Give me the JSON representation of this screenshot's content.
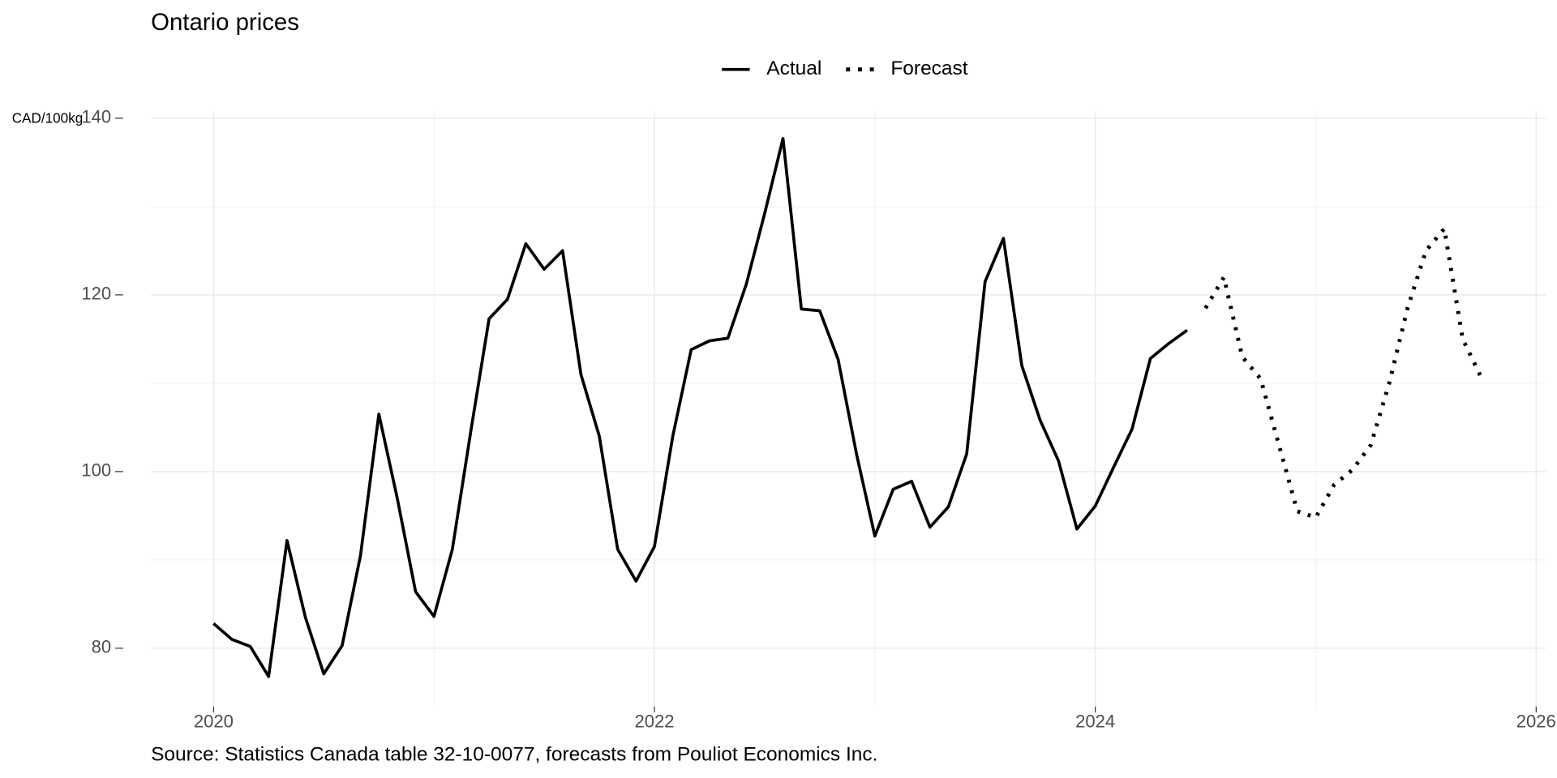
{
  "chart_data": {
    "type": "line",
    "title": "Ontario prices",
    "y_label": "CAD/100kg",
    "caption": "Source: Statistics Canada table 32-10-0077, forecasts from Pouliot Economics Inc.",
    "x": [
      "2020-01",
      "2020-02",
      "2020-03",
      "2020-04",
      "2020-05",
      "2020-06",
      "2020-07",
      "2020-08",
      "2020-09",
      "2020-10",
      "2020-11",
      "2020-12",
      "2021-01",
      "2021-02",
      "2021-03",
      "2021-04",
      "2021-05",
      "2021-06",
      "2021-07",
      "2021-08",
      "2021-09",
      "2021-10",
      "2021-11",
      "2021-12",
      "2022-01",
      "2022-02",
      "2022-03",
      "2022-04",
      "2022-05",
      "2022-06",
      "2022-07",
      "2022-08",
      "2022-09",
      "2022-10",
      "2022-11",
      "2022-12",
      "2023-01",
      "2023-02",
      "2023-03",
      "2023-04",
      "2023-05",
      "2023-06",
      "2023-07",
      "2023-08",
      "2023-09",
      "2023-10",
      "2023-11",
      "2023-12",
      "2024-01",
      "2024-02",
      "2024-03",
      "2024-04",
      "2024-05",
      "2024-06",
      "2024-07",
      "2024-08",
      "2024-09",
      "2024-10",
      "2024-11",
      "2024-12",
      "2025-01",
      "2025-02",
      "2025-03",
      "2025-04",
      "2025-05",
      "2025-06",
      "2025-07",
      "2025-08",
      "2025-09",
      "2025-10"
    ],
    "series": [
      {
        "name": "Actual",
        "color": "#000000",
        "linestyle": "solid",
        "values": [
          82.8,
          81,
          80.2,
          76.8,
          92.2,
          83.5,
          77.1,
          80.3,
          90.5,
          106.5,
          97,
          86.4,
          83.6,
          91.2,
          104.5,
          117.3,
          119.5,
          125.8,
          122.9,
          125,
          111,
          104,
          91.2,
          87.6,
          91.5,
          104,
          113.8,
          114.8,
          115.1,
          121.2,
          129.2,
          137.7,
          118.4,
          118.2,
          112.7,
          102,
          92.7,
          98,
          98.9,
          93.7,
          96,
          102,
          121.5,
          126.4,
          112,
          105.8,
          101.2,
          93.5,
          96.1,
          100.5,
          104.8,
          112.8,
          114.5,
          116,
          null,
          null,
          null,
          null,
          null,
          null,
          null,
          null,
          null,
          null,
          null,
          null,
          null,
          null,
          null,
          null
        ]
      },
      {
        "name": "Forecast",
        "color": "#000000",
        "linestyle": "dotted",
        "values": [
          null,
          null,
          null,
          null,
          null,
          null,
          null,
          null,
          null,
          null,
          null,
          null,
          null,
          null,
          null,
          null,
          null,
          null,
          null,
          null,
          null,
          null,
          null,
          null,
          null,
          null,
          null,
          null,
          null,
          null,
          null,
          null,
          null,
          null,
          null,
          null,
          null,
          null,
          null,
          null,
          null,
          null,
          null,
          null,
          null,
          null,
          null,
          null,
          null,
          null,
          null,
          null,
          null,
          null,
          118.5,
          122,
          113,
          110.5,
          103,
          95.5,
          94.8,
          98.5,
          100.2,
          103,
          110,
          118.5,
          125,
          127.5,
          115,
          110.7
        ]
      }
    ],
    "xlim": [
      2019.716,
      2026.045
    ],
    "xticks": [
      2020,
      2022,
      2024,
      2026
    ],
    "ylim": [
      73.4,
      140.8
    ],
    "yticks": [
      80,
      100,
      120,
      140
    ],
    "grid": true,
    "legend": "top"
  }
}
